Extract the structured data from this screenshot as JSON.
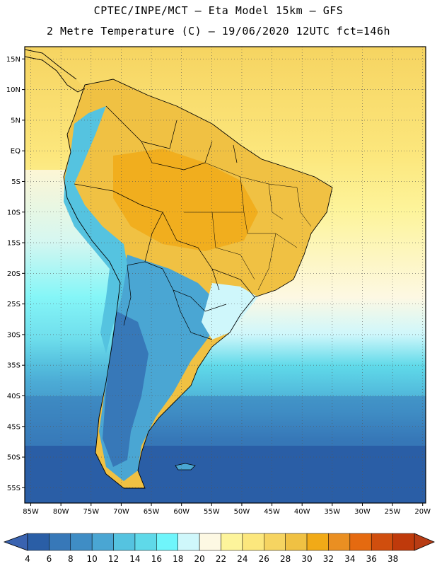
{
  "header": {
    "title_line1": "CPTEC/INPE/MCT –  Eta Model 15km – GFS",
    "title_line2": "2 Metre Temperature (C) – 19/06/2020 12UTC fct=146h"
  },
  "map": {
    "lat_labels": [
      "15N",
      "10N",
      "5N",
      "EQ",
      "5S",
      "10S",
      "15S",
      "20S",
      "25S",
      "30S",
      "35S",
      "40S",
      "45S",
      "50S",
      "55S"
    ],
    "lat_values": [
      15,
      10,
      5,
      0,
      -5,
      -10,
      -15,
      -20,
      -25,
      -30,
      -35,
      -40,
      -45,
      -50,
      -55
    ],
    "lon_labels": [
      "85W",
      "80W",
      "75W",
      "70W",
      "65W",
      "60W",
      "55W",
      "50W",
      "45W",
      "40W",
      "35W",
      "30W",
      "25W",
      "20W"
    ],
    "lon_values": [
      -85,
      -80,
      -75,
      -70,
      -65,
      -60,
      -55,
      -50,
      -45,
      -40,
      -35,
      -30,
      -25,
      -20
    ],
    "lon_range": [
      -86,
      -19.5
    ],
    "lat_range": [
      -57.5,
      17
    ]
  },
  "colorbar": {
    "levels": [
      "4",
      "6",
      "8",
      "10",
      "12",
      "14",
      "16",
      "18",
      "20",
      "22",
      "24",
      "26",
      "28",
      "30",
      "32",
      "34",
      "36",
      "38"
    ],
    "colors": [
      "#2a5ea6",
      "#3778b8",
      "#3f8dc5",
      "#4aa6d3",
      "#55c3e0",
      "#5fd9e9",
      "#6ff5fb",
      "#cff7fb",
      "#fdf8e3",
      "#fdf49b",
      "#fce77d",
      "#f6d461",
      "#f0c143",
      "#f1aa17",
      "#ea8f22",
      "#e56a10",
      "#d04e0e",
      "#bf3a0b"
    ],
    "left_arrow_color": "#3a63b0",
    "right_arrow_color": "#b83c14"
  }
}
